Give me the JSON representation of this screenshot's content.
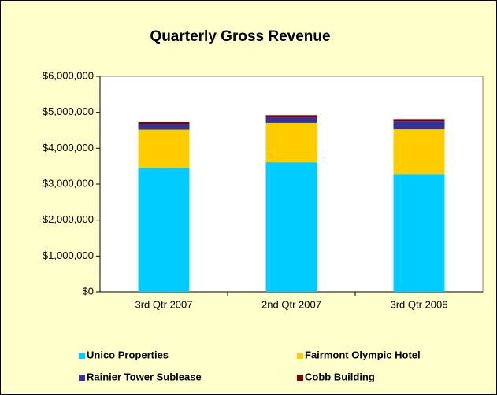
{
  "chart_data": {
    "type": "stacked_bar",
    "title": "Quarterly Gross Revenue",
    "categories": [
      "3rd Qtr 2007",
      "2nd Qtr 2007",
      "3rd Qtr 2006"
    ],
    "series": [
      {
        "name": "Unico Properties",
        "color": "#00ccff",
        "values": [
          3450000,
          3610000,
          3280000
        ]
      },
      {
        "name": "Fairmont Olympic Hotel",
        "color": "#ffcc00",
        "values": [
          1070000,
          1100000,
          1250000
        ]
      },
      {
        "name": "Rainier Tower Sublease",
        "color": "#333399",
        "values": [
          150000,
          150000,
          220000
        ]
      },
      {
        "name": "Cobb Building",
        "color": "#800000",
        "values": [
          60000,
          60000,
          60000
        ]
      }
    ],
    "ylim": [
      0,
      6000000
    ],
    "yticks": [
      {
        "value": 0,
        "label": "$0"
      },
      {
        "value": 1000000,
        "label": "$1,000,000"
      },
      {
        "value": 2000000,
        "label": "$2,000,000"
      },
      {
        "value": 3000000,
        "label": "$3,000,000"
      },
      {
        "value": 4000000,
        "label": "$4,000,000"
      },
      {
        "value": 5000000,
        "label": "$5,000,000"
      },
      {
        "value": 6000000,
        "label": "$6,000,000"
      }
    ],
    "grid": false,
    "legend": "bottom"
  }
}
